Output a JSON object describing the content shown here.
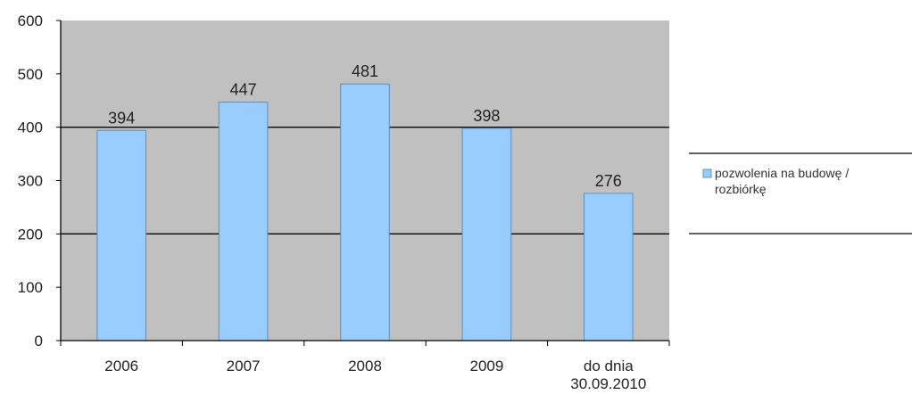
{
  "chart_data": {
    "type": "bar",
    "title": "",
    "xlabel": "",
    "ylabel": "",
    "categories": [
      "2006",
      "2007",
      "2008",
      "2009",
      "do dnia 30.09.2010"
    ],
    "category_lines": [
      [
        "2006"
      ],
      [
        "2007"
      ],
      [
        "2008"
      ],
      [
        "2009"
      ],
      [
        "do dnia",
        "30.09.2010"
      ]
    ],
    "series": [
      {
        "name": "pozwolenia na budowę / rozbiórkę",
        "values": [
          394,
          447,
          481,
          398,
          276
        ]
      }
    ],
    "legend_lines": [
      "pozwolenia na budowę /",
      "rozbiórkę"
    ],
    "data_labels": [
      "394",
      "447",
      "481",
      "398",
      "276"
    ],
    "y_ticks": [
      0,
      100,
      200,
      300,
      400,
      500,
      600
    ],
    "ylim": [
      0,
      600
    ],
    "gridlines": [
      200,
      400
    ],
    "grid": true,
    "legend_position": "right",
    "colors": {
      "plot_background": "#c0c0c0",
      "bar_fill": "#99ccff",
      "bar_stroke": "#5f8fbf",
      "axis": "#000000",
      "gridline": "#000000"
    }
  }
}
